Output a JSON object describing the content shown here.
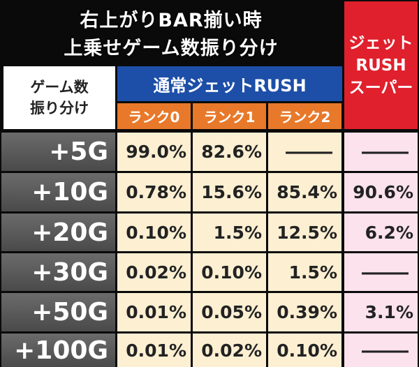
{
  "title": {
    "lines": [
      "右上がりBAR揃い時",
      "上乗せゲーム数振り分け"
    ]
  },
  "table": {
    "row_header": [
      "ゲーム数",
      "振り分け"
    ],
    "group_header": "通常ジェットRUSH",
    "columns": [
      "ランク0",
      "ランク1",
      "ランク2"
    ],
    "super_header": [
      "ジェット",
      "RUSH",
      "スーパー"
    ],
    "rows": [
      {
        "label": "+5G",
        "values": [
          "99.0%",
          "82.6%",
          "—",
          "—"
        ]
      },
      {
        "label": "+10G",
        "values": [
          "0.78%",
          "15.6%",
          "85.4%",
          "90.6%"
        ]
      },
      {
        "label": "+20G",
        "values": [
          "0.10%",
          "1.5%",
          "12.5%",
          "6.2%"
        ]
      },
      {
        "label": "+30G",
        "values": [
          "0.02%",
          "0.10%",
          "1.5%",
          "—"
        ]
      },
      {
        "label": "+50G",
        "values": [
          "0.01%",
          "0.05%",
          "0.39%",
          "3.1%"
        ]
      },
      {
        "label": "+100G",
        "values": [
          "0.01%",
          "0.02%",
          "0.10%",
          "—"
        ]
      }
    ]
  }
}
